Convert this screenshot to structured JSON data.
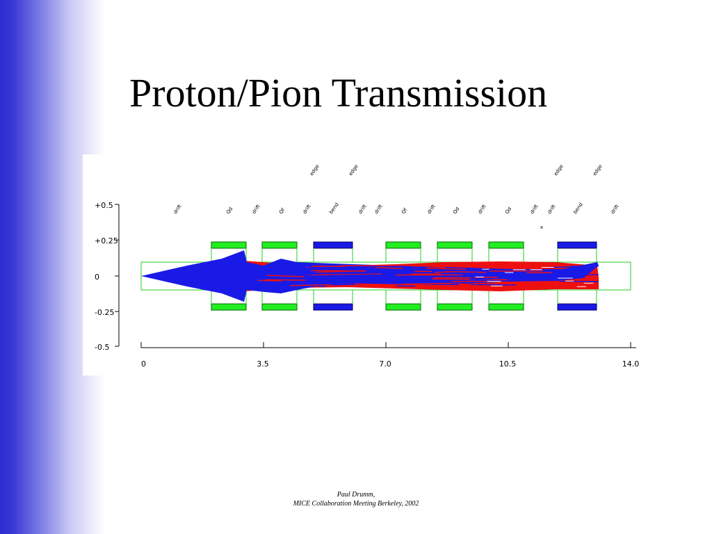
{
  "slide": {
    "title": "Proton/Pion Transmission"
  },
  "footer": {
    "line1": "Paul Drumm,",
    "line2": "MICE Collaboration Meeting Berkeley, 2002"
  },
  "chart_data": {
    "type": "line",
    "xlim": [
      0,
      14.0
    ],
    "ylim": [
      -0.5,
      0.5
    ],
    "x_ticks": [
      "0",
      "3.5",
      "7.0",
      "10.5",
      "14.0"
    ],
    "y_ticks": [
      "+0.5",
      "+0.25",
      "0",
      "-0.25",
      "-0.5"
    ],
    "element_labels": [
      "drift",
      "Qd",
      "drift",
      "Qf",
      "drift",
      "bend",
      "drift",
      "drift",
      "Qf",
      "drift",
      "Qd",
      "drift",
      "Qd",
      "drift",
      "drift",
      "bend",
      "drift"
    ],
    "edge_labels": [
      "edge",
      "edge",
      "edge",
      "edge"
    ],
    "marker_label": "x",
    "colors": {
      "proton": "#ee1010",
      "pion": "#1a1ae6",
      "quad": "#22ee22",
      "bend": "#1a1ae6",
      "aperture": "#22cc22"
    }
  }
}
